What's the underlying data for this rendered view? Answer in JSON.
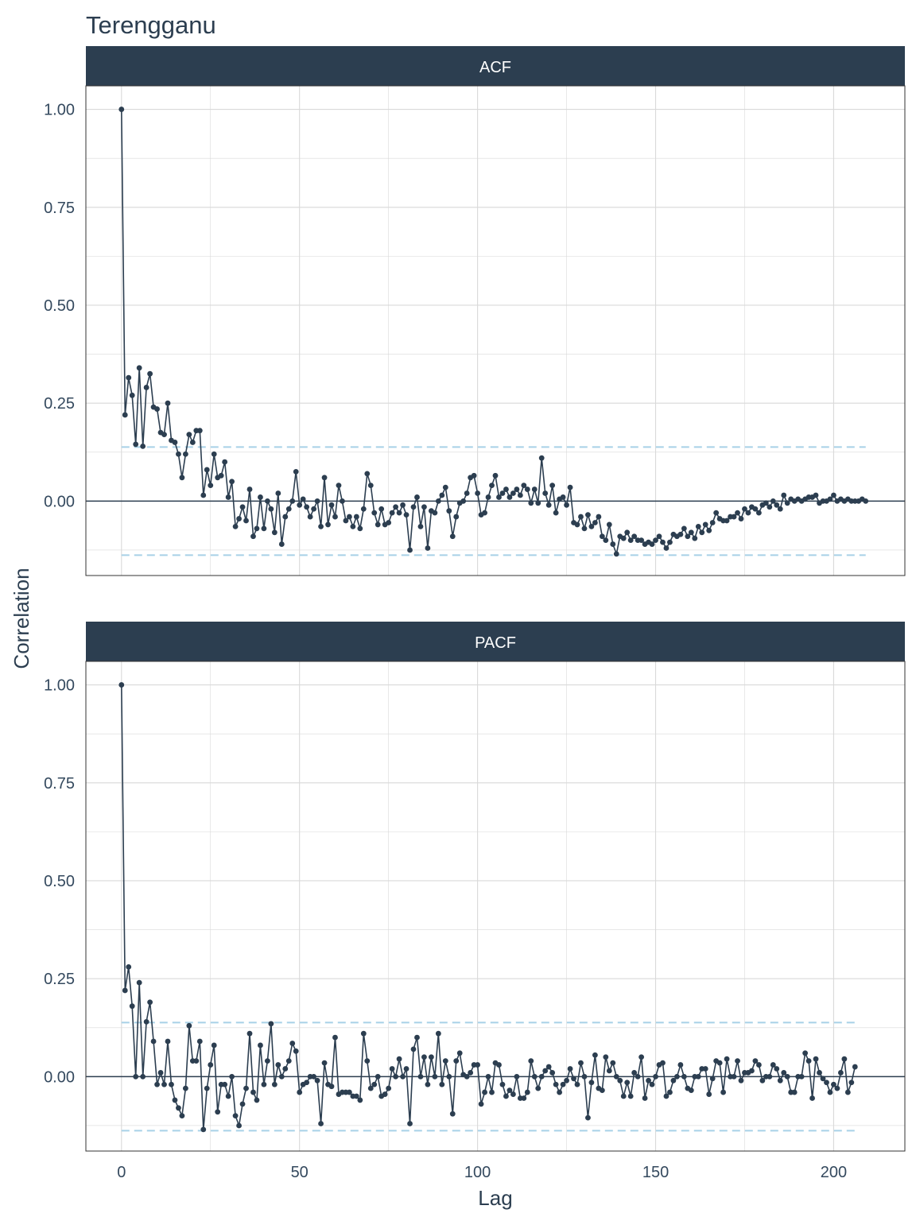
{
  "title": "Terengganu",
  "colors": {
    "strip_bg": "#2c3e50",
    "series": "#2c3e50",
    "ci_line": "#a8d1e7",
    "zero_line": "#2c3e50",
    "grid": "#d9d9d9",
    "panel_border": "#333333"
  },
  "chart_data": [
    {
      "type": "line",
      "panel": "ACF",
      "xlabel": "Lag",
      "ylabel": "Correlation",
      "xlim": [
        -10,
        220
      ],
      "ylim": [
        -0.19,
        1.06
      ],
      "x_ticks": [
        0,
        50,
        100,
        150,
        200
      ],
      "y_ticks": [
        0.0,
        0.25,
        0.5,
        0.75,
        1.0
      ],
      "y_tick_labels": [
        "0.00",
        "0.25",
        "0.50",
        "0.75",
        "1.00"
      ],
      "ci": 0.138,
      "grid": true,
      "x": "lags 0..210",
      "values": [
        1.0,
        0.22,
        0.315,
        0.27,
        0.145,
        0.34,
        0.14,
        0.29,
        0.325,
        0.24,
        0.235,
        0.175,
        0.17,
        0.25,
        0.155,
        0.15,
        0.12,
        0.06,
        0.12,
        0.17,
        0.15,
        0.18,
        0.18,
        0.015,
        0.08,
        0.04,
        0.12,
        0.06,
        0.065,
        0.1,
        0.01,
        0.05,
        -0.065,
        -0.045,
        -0.015,
        -0.05,
        0.03,
        -0.09,
        -0.07,
        0.01,
        -0.07,
        0.0,
        -0.02,
        -0.08,
        0.02,
        -0.11,
        -0.04,
        -0.02,
        0.0,
        0.075,
        -0.01,
        0.005,
        -0.015,
        -0.04,
        -0.02,
        0.0,
        -0.065,
        0.06,
        -0.06,
        -0.01,
        -0.04,
        0.04,
        0.0,
        -0.05,
        -0.04,
        -0.065,
        -0.04,
        -0.07,
        -0.02,
        0.07,
        0.04,
        -0.03,
        -0.06,
        -0.02,
        -0.06,
        -0.055,
        -0.03,
        -0.015,
        -0.03,
        -0.01,
        -0.035,
        -0.125,
        -0.015,
        0.01,
        -0.065,
        -0.015,
        -0.12,
        -0.025,
        -0.03,
        0.0,
        0.015,
        0.035,
        -0.025,
        -0.09,
        -0.04,
        -0.005,
        0.0,
        0.02,
        0.06,
        0.065,
        0.02,
        -0.035,
        -0.03,
        0.01,
        0.04,
        0.065,
        0.01,
        0.02,
        0.03,
        0.01,
        0.02,
        0.03,
        0.015,
        0.04,
        0.03,
        -0.005,
        0.03,
        -0.005,
        0.11,
        0.02,
        -0.01,
        0.04,
        -0.03,
        0.005,
        0.01,
        -0.01,
        0.035,
        -0.055,
        -0.06,
        -0.04,
        -0.07,
        -0.035,
        -0.065,
        -0.055,
        -0.04,
        -0.09,
        -0.1,
        -0.06,
        -0.11,
        -0.135,
        -0.09,
        -0.095,
        -0.08,
        -0.1,
        -0.09,
        -0.1,
        -0.1,
        -0.11,
        -0.105,
        -0.11,
        -0.1,
        -0.09,
        -0.105,
        -0.12,
        -0.105,
        -0.085,
        -0.09,
        -0.085,
        -0.07,
        -0.09,
        -0.08,
        -0.095,
        -0.065,
        -0.08,
        -0.06,
        -0.075,
        -0.055,
        -0.03,
        -0.045,
        -0.05,
        -0.05,
        -0.04,
        -0.04,
        -0.03,
        -0.045,
        -0.02,
        -0.03,
        -0.015,
        -0.02,
        -0.03,
        -0.01,
        -0.005,
        -0.015,
        0.0,
        -0.01,
        -0.02,
        0.015,
        -0.005,
        0.005,
        0.0,
        0.005,
        0.0,
        0.005,
        0.01,
        0.01,
        0.015,
        -0.005,
        0.0,
        0.0,
        0.005,
        0.015,
        0.0,
        0.005,
        0.0,
        0.005,
        0.0,
        0.0,
        0.0,
        0.005,
        0.0
      ]
    },
    {
      "type": "line",
      "panel": "PACF",
      "xlabel": "Lag",
      "ylabel": "Correlation",
      "xlim": [
        -10,
        220
      ],
      "ylim": [
        -0.19,
        1.06
      ],
      "x_ticks": [
        0,
        50,
        100,
        150,
        200
      ],
      "y_ticks": [
        0.0,
        0.25,
        0.5,
        0.75,
        1.0
      ],
      "y_tick_labels": [
        "0.00",
        "0.25",
        "0.50",
        "0.75",
        "1.00"
      ],
      "ci": 0.138,
      "grid": true,
      "x": "lags 0..210",
      "values": [
        1.0,
        0.22,
        0.28,
        0.18,
        0.0,
        0.24,
        0.0,
        0.14,
        0.19,
        0.09,
        -0.02,
        0.01,
        -0.02,
        0.09,
        -0.02,
        -0.06,
        -0.08,
        -0.1,
        -0.03,
        0.13,
        0.04,
        0.04,
        0.09,
        -0.135,
        -0.03,
        0.03,
        0.08,
        -0.09,
        -0.02,
        -0.02,
        -0.05,
        0.0,
        -0.1,
        -0.125,
        -0.07,
        -0.03,
        0.11,
        -0.04,
        -0.06,
        0.08,
        -0.02,
        0.04,
        0.135,
        -0.02,
        0.03,
        0.0,
        0.02,
        0.04,
        0.085,
        0.065,
        -0.04,
        -0.02,
        -0.015,
        0.0,
        0.0,
        -0.01,
        -0.12,
        0.035,
        -0.02,
        -0.025,
        0.1,
        -0.045,
        -0.04,
        -0.04,
        -0.04,
        -0.05,
        -0.05,
        -0.06,
        0.11,
        0.04,
        -0.03,
        -0.02,
        0.0,
        -0.05,
        -0.045,
        -0.03,
        0.02,
        0.0,
        0.045,
        0.0,
        0.02,
        -0.12,
        0.07,
        0.1,
        0.0,
        0.05,
        -0.02,
        0.05,
        0.0,
        0.11,
        -0.02,
        0.04,
        0.0,
        -0.095,
        0.04,
        0.06,
        0.005,
        0.0,
        0.01,
        0.03,
        0.03,
        -0.07,
        -0.04,
        0.0,
        -0.04,
        0.035,
        0.03,
        -0.02,
        -0.05,
        -0.035,
        -0.045,
        0.0,
        -0.055,
        -0.055,
        -0.04,
        0.04,
        0.0,
        -0.03,
        0.0,
        0.015,
        0.025,
        0.01,
        -0.02,
        -0.04,
        -0.02,
        -0.01,
        0.02,
        -0.005,
        -0.02,
        0.035,
        0.0,
        -0.105,
        -0.015,
        0.055,
        -0.03,
        -0.035,
        0.05,
        0.015,
        0.035,
        0.0,
        -0.01,
        -0.05,
        -0.015,
        -0.05,
        0.01,
        0.0,
        0.05,
        -0.055,
        -0.01,
        -0.02,
        0.0,
        0.03,
        0.035,
        -0.05,
        -0.04,
        -0.01,
        0.0,
        0.03,
        0.0,
        -0.03,
        -0.035,
        0.0,
        0.0,
        0.02,
        0.02,
        -0.045,
        -0.005,
        0.04,
        0.035,
        -0.04,
        0.045,
        0.0,
        0.0,
        0.04,
        -0.01,
        0.01,
        0.01,
        0.015,
        0.04,
        0.03,
        -0.01,
        0.0,
        0.0,
        0.03,
        0.02,
        -0.01,
        0.01,
        0.0,
        -0.04,
        -0.04,
        0.0,
        0.0,
        0.06,
        0.04,
        -0.055,
        0.045,
        0.01,
        -0.005,
        -0.015,
        -0.04,
        -0.02,
        -0.03,
        0.01,
        0.045,
        -0.04,
        -0.015,
        0.025
      ]
    }
  ],
  "strip_labels": [
    "ACF",
    "PACF"
  ],
  "x_tick_labels": [
    "0",
    "50",
    "100",
    "150",
    "200"
  ],
  "xlabel": "Lag",
  "ylabel": "Correlation"
}
